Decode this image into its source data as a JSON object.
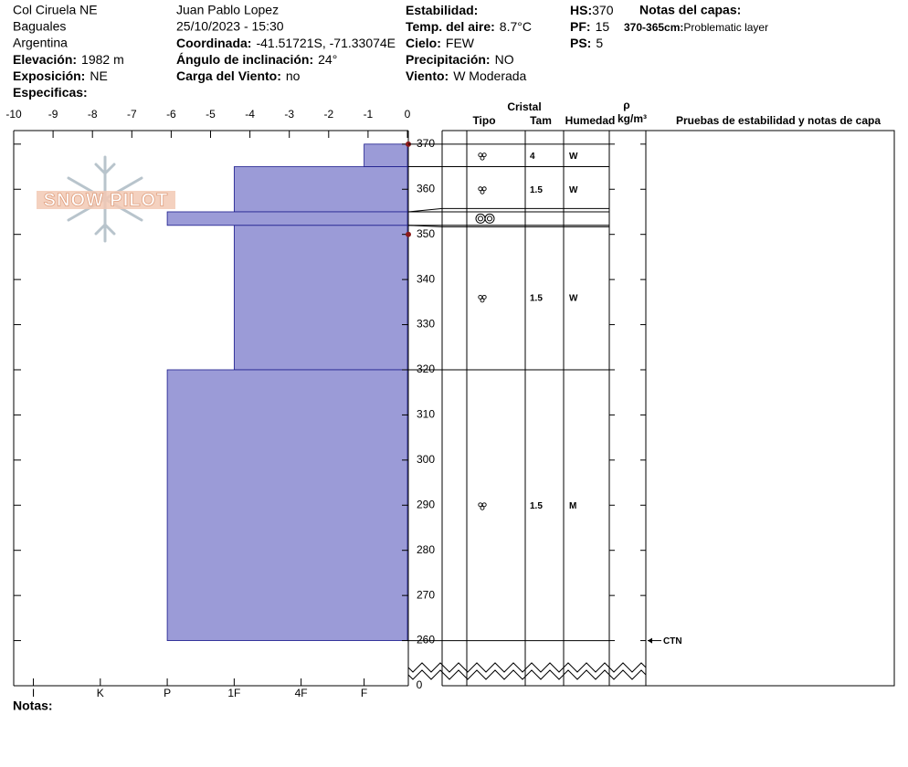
{
  "header": {
    "columns": [
      [
        {
          "text": "Col Ciruela NE"
        },
        {
          "text": "Baguales"
        },
        {
          "text": "Argentina"
        },
        {
          "label": "Elevación:",
          "value": "1982 m"
        },
        {
          "label": "Exposición:",
          "value": "NE"
        },
        {
          "label": "Especificas:"
        }
      ],
      [
        {
          "text": "Juan Pablo  Lopez"
        },
        {
          "text": "25/10/2023 - 15:30"
        },
        {
          "label": "Coordinada:",
          "value": "-41.51721S, -71.33074E"
        },
        {
          "label": "Ángulo de inclinación:",
          "value": "24°"
        },
        {
          "label": "Carga del Viento:",
          "value": "no"
        }
      ],
      [
        {
          "label": "Estabilidad:"
        },
        {
          "label": "Temp. del aire:",
          "value": "8.7°C"
        },
        {
          "label": "Cielo:",
          "value": "FEW"
        },
        {
          "label": "Precipitación:",
          "value": "NO"
        },
        {
          "label": "Viento:",
          "value": "W Moderada"
        }
      ],
      [
        {
          "label": "HS:",
          "value": "370"
        },
        {
          "label": "PF:",
          "value": "15"
        },
        {
          "label": "PS:",
          "value": "5"
        }
      ]
    ],
    "notes": {
      "title": "Notas del capas:",
      "items": [
        {
          "label": "370-365cm:",
          "text": "Problematic layer"
        }
      ]
    }
  },
  "logo": "SNOW PILOT",
  "chart_data": {
    "type": "bar",
    "orientation": "horizontal",
    "color": "#9b9bd7",
    "xlim": [
      -10,
      0
    ],
    "xticks": [
      -10,
      -9,
      -8,
      -7,
      -6,
      -5,
      -4,
      -3,
      -2,
      -1,
      0
    ],
    "hardness_ticks": [
      {
        "value": -9.5,
        "label": "I"
      },
      {
        "value": -7.8,
        "label": "K"
      },
      {
        "value": -6.1,
        "label": "P"
      },
      {
        "value": -4.4,
        "label": "1F"
      },
      {
        "value": -2.7,
        "label": "4F"
      },
      {
        "value": -1.1,
        "label": "F"
      }
    ],
    "ylim": [
      250,
      373
    ],
    "yticks": [
      260,
      270,
      280,
      290,
      300,
      310,
      320,
      330,
      340,
      350,
      360,
      370
    ],
    "ground_label": "0",
    "bars": [
      {
        "top": 370,
        "bottom": 365,
        "value": -1.1
      },
      {
        "top": 365,
        "bottom": 355,
        "value": -4.4
      },
      {
        "top": 355,
        "bottom": 352,
        "value": -6.1
      },
      {
        "top": 352,
        "bottom": 320,
        "value": -4.4
      },
      {
        "top": 320,
        "bottom": 260,
        "value": -6.1
      }
    ],
    "markers": [
      370,
      350
    ],
    "marker_color": "#8b1a1a"
  },
  "table": {
    "headers": {
      "crystal": "Cristal",
      "type": "Tipo",
      "size": "Tam",
      "moisture": "Humedad",
      "density": "ρ",
      "density_unit": "kg/m³",
      "tests": "Pruebas de estabilidad y notas de capa"
    },
    "layers": [
      {
        "size": "4",
        "moisture": "W"
      },
      {
        "size": "1.5",
        "moisture": "W"
      },
      {},
      {
        "size": "1.5",
        "moisture": "W"
      },
      {
        "size": "1.5",
        "moisture": "M"
      }
    ],
    "tests": [
      {
        "height": 260,
        "label": "CTN"
      }
    ]
  },
  "footer": "Notas:"
}
